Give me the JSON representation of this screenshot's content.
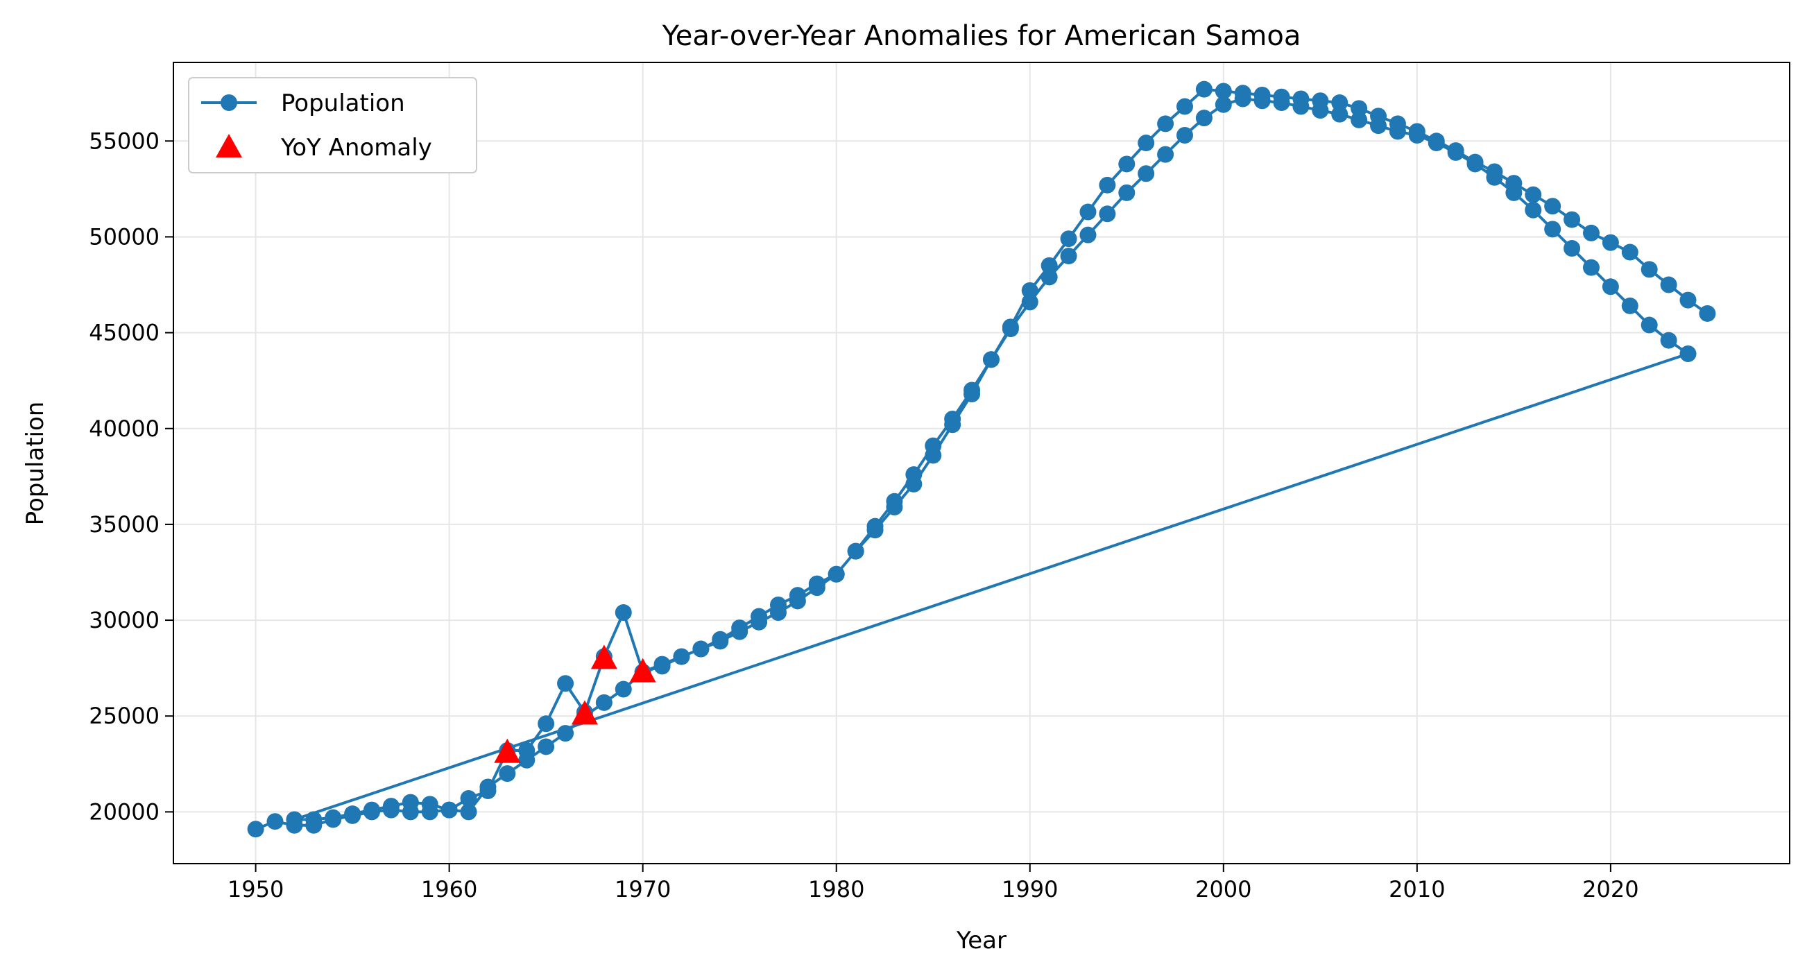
{
  "chart_data": {
    "type": "line",
    "title": "Year-over-Year Anomalies for American Samoa",
    "xlabel": "Year",
    "ylabel": "Population",
    "xlim": [
      1945.75,
      2029.25
    ],
    "ylim": [
      17300,
      59100
    ],
    "xticks": [
      1950,
      1960,
      1970,
      1980,
      1990,
      2000,
      2010,
      2020
    ],
    "yticks": [
      20000,
      25000,
      30000,
      35000,
      40000,
      45000,
      50000,
      55000
    ],
    "grid": true,
    "legend_position": "top-left",
    "legend": [
      {
        "label": "Population",
        "marker": "circle-line",
        "color": "#1f77b4"
      },
      {
        "label": "YoY Anomaly",
        "marker": "triangle",
        "color": "#ff0000"
      }
    ],
    "series": [
      {
        "name": "Population",
        "color": "#1f77b4",
        "style": "line-with-circle-markers",
        "x": [
          1950,
          1951,
          1952,
          1953,
          1954,
          1955,
          1956,
          1957,
          1958,
          1959,
          1960,
          1961,
          1962,
          1963,
          1964,
          1965,
          1966,
          1967,
          1968,
          1969,
          1970,
          1971,
          1972,
          1973,
          1974,
          1975,
          1976,
          1977,
          1978,
          1979,
          1980,
          1981,
          1982,
          1983,
          1984,
          1985,
          1986,
          1987,
          1988,
          1989,
          1990,
          1991,
          1992,
          1993,
          1994,
          1995,
          1996,
          1997,
          1998,
          1999,
          2000,
          2001,
          2002,
          2003,
          2004,
          2005,
          2006,
          2007,
          2008,
          2009,
          2010,
          2011,
          2012,
          2013,
          2014,
          2015,
          2016,
          2017,
          2018,
          2019,
          2020,
          2021,
          2022,
          2023,
          2024,
          1952,
          1953,
          1954,
          1955,
          1956,
          1957,
          1958,
          1959,
          1960,
          1961,
          1962,
          1963,
          1964,
          1965,
          1966,
          1967,
          1968,
          1969,
          1970,
          1971,
          1972,
          1973,
          1974,
          1975,
          1976,
          1977,
          1978,
          1979,
          1980,
          1981,
          1982,
          1983,
          1984,
          1985,
          1986,
          1987,
          1988,
          1989,
          1990,
          1991,
          1992,
          1993,
          1994,
          1995,
          1996,
          1997,
          1998,
          1999,
          2000,
          2001,
          2002,
          2003,
          2004,
          2005,
          2006,
          2007,
          2008,
          2009,
          2010,
          2011,
          2012,
          2013,
          2014,
          2015,
          2016,
          2017,
          2018,
          2019,
          2020,
          2021,
          2022,
          2023,
          2024,
          2025
        ],
        "y": [
          19100,
          19500,
          19300,
          19300,
          19600,
          19800,
          20000,
          20100,
          20000,
          20000,
          20100,
          20000,
          21300,
          22000,
          22700,
          23400,
          24100,
          25000,
          25700,
          26400,
          27300,
          27700,
          28100,
          28500,
          28900,
          29400,
          29900,
          30400,
          31000,
          31700,
          32400,
          33600,
          34700,
          35900,
          37100,
          38600,
          40200,
          41800,
          43600,
          45200,
          46600,
          47900,
          49000,
          50100,
          51200,
          52300,
          53300,
          54300,
          55300,
          56200,
          56900,
          57200,
          57100,
          57000,
          56800,
          56600,
          56400,
          56100,
          55800,
          55500,
          55300,
          54900,
          54400,
          53800,
          53100,
          52300,
          51400,
          50400,
          49400,
          48400,
          47400,
          46400,
          45400,
          44600,
          43900,
          19600,
          19600,
          19700,
          19900,
          20100,
          20300,
          20500,
          20400,
          20100,
          20700,
          21100,
          23200,
          23200,
          24600,
          26700,
          25200,
          28100,
          30400,
          27300,
          27600,
          28100,
          28500,
          29000,
          29600,
          30200,
          30800,
          31300,
          31900,
          32400,
          33600,
          34900,
          36200,
          37600,
          39100,
          40500,
          42000,
          43600,
          45300,
          47200,
          48500,
          49900,
          51300,
          52700,
          53800,
          54900,
          55900,
          56800,
          57700,
          57600,
          57500,
          57400,
          57300,
          57200,
          57100,
          57000,
          56700,
          56300,
          55900,
          55500,
          55000,
          54500,
          53900,
          53400,
          52800,
          52200,
          51600,
          50900,
          50200,
          49700,
          49200,
          48300,
          47500,
          46700,
          46000
        ]
      },
      {
        "name": "YoY Anomaly",
        "color": "#ff0000",
        "style": "triangle-markers",
        "x": [
          1963,
          1967,
          1968,
          1970
        ],
        "y": [
          23100,
          25100,
          28000,
          27300
        ]
      }
    ]
  }
}
